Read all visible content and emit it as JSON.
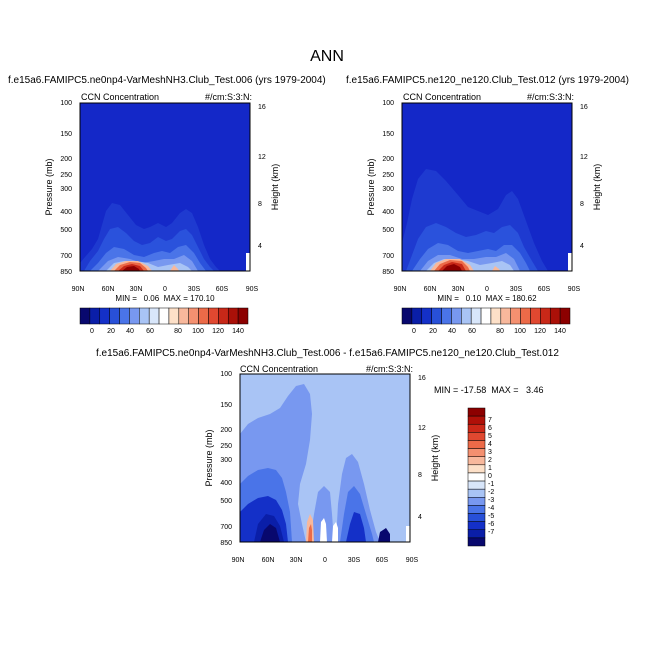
{
  "title": "ANN",
  "colors": {
    "deep_blue": "#0a14a8",
    "panel_blue": "#1428c8",
    "light_blue": "#a9c4f5",
    "white": "#ffffff",
    "deep_red": "#8c0000"
  },
  "panels": [
    {
      "case": "f.e15a6.FAMIPC5.ne0np4-VarMeshNH3.Club_Test.006 (yrs 1979-2004)",
      "var_label": "CCN Concentration",
      "units": "#/cm:S:3:N:",
      "ylabel": "Pressure (mb)",
      "ylabel_right": "Height (km)",
      "stats": "MIN =   0.06  MAX = 170.10"
    },
    {
      "case": "f.e15a6.FAMIPC5.ne120_ne120.Club_Test.012 (yrs 1979-2004)",
      "var_label": "CCN Concentration",
      "units": "#/cm:S:3:N:",
      "ylabel": "Pressure (mb)",
      "ylabel_right": "Height (km)",
      "stats": "MIN =   0.10  MAX = 180.62"
    },
    {
      "case": "f.e15a6.FAMIPC5.ne0np4-VarMeshNH3.Club_Test.006 - f.e15a6.FAMIPC5.ne120_ne120.Club_Test.012",
      "var_label": "CCN Concentration",
      "units": "#/cm:S:3:N:",
      "ylabel": "Pressure (mb)",
      "ylabel_right": "Height (km)",
      "stats": "MIN = -17.58  MAX =   3.46"
    }
  ],
  "pressure_ticks": [
    "100",
    "150",
    "200",
    "250",
    "300",
    "400",
    "500",
    "700",
    "850"
  ],
  "height_ticks": [
    "16",
    "12",
    "8",
    "4"
  ],
  "lat_ticks": [
    "90N",
    "60N",
    "30N",
    "0",
    "30S",
    "60S",
    "90S"
  ],
  "colorbar_main": {
    "labels": [
      "0",
      "20",
      "40",
      "60",
      "80",
      "100",
      "120",
      "140"
    ],
    "colors": [
      "#08086e",
      "#0a1ea8",
      "#1430c8",
      "#2850d8",
      "#4a74e8",
      "#7898f0",
      "#a9c4f5",
      "#d8e6fa",
      "#ffffff",
      "#fde0c8",
      "#f8b89c",
      "#f49070",
      "#ec6a48",
      "#e04830",
      "#c82818",
      "#aa1008",
      "#8c0000"
    ]
  },
  "colorbar_diff": {
    "labels": [
      "7",
      "6",
      "5",
      "4",
      "3",
      "2",
      "1",
      "0",
      "-1",
      "-2",
      "-3",
      "-4",
      "-5",
      "-6",
      "-7"
    ],
    "colors": [
      "#8c0000",
      "#b01008",
      "#cc2818",
      "#e04830",
      "#ec6a48",
      "#f49070",
      "#f8b89c",
      "#fde0c8",
      "#ffffff",
      "#d8e6fa",
      "#a9c4f5",
      "#7898f0",
      "#4a74e8",
      "#2850d8",
      "#1430c8",
      "#0a1ea8",
      "#08086e"
    ]
  },
  "chart_data": [
    {
      "type": "heatmap",
      "title": "f.e15a6.FAMIPC5.ne0np4-VarMeshNH3.Club_Test.006 (yrs 1979-2004)",
      "x": "latitude (90N to 90S)",
      "y": "pressure (mb)",
      "ylim": [
        100,
        850
      ],
      "zmin": 0.06,
      "zmax": 170.1,
      "contour_levels": [
        0,
        20,
        40,
        60,
        80,
        100,
        120,
        140
      ]
    },
    {
      "type": "heatmap",
      "title": "f.e15a6.FAMIPC5.ne120_ne120.Club_Test.012 (yrs 1979-2004)",
      "x": "latitude (90N to 90S)",
      "y": "pressure (mb)",
      "ylim": [
        100,
        850
      ],
      "zmin": 0.1,
      "zmax": 180.62,
      "contour_levels": [
        0,
        20,
        40,
        60,
        80,
        100,
        120,
        140
      ]
    },
    {
      "type": "heatmap",
      "title": "f.e15a6.FAMIPC5.ne0np4-VarMeshNH3.Club_Test.006 - f.e15a6.FAMIPC5.ne120_ne120.Club_Test.012",
      "x": "latitude (90N to 90S)",
      "y": "pressure (mb)",
      "ylim": [
        100,
        850
      ],
      "zmin": -17.58,
      "zmax": 3.46,
      "contour_levels": [
        -7,
        -6,
        -5,
        -4,
        -3,
        -2,
        -1,
        0,
        1,
        2,
        3,
        4,
        5,
        6,
        7
      ]
    }
  ]
}
